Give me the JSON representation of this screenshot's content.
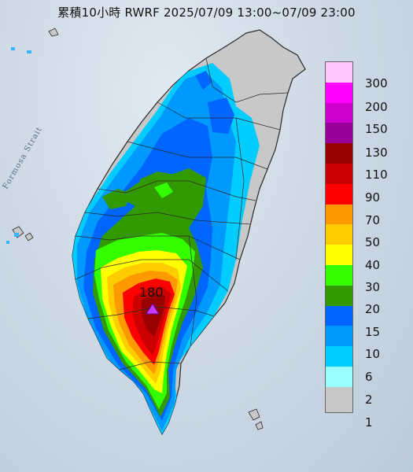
{
  "title": "累積10小時 RWRF 2025/07/09 13:00~07/09 23:00",
  "map_labels": {
    "strait": "Formosa Strait"
  },
  "max_marker": {
    "value": "180",
    "color": "#c43cff"
  },
  "legend": {
    "items": [
      {
        "label": "300",
        "color": "#fec8ff"
      },
      {
        "label": "200",
        "color": "#ff00ff"
      },
      {
        "label": "150",
        "color": "#cc00cc"
      },
      {
        "label": "130",
        "color": "#990099"
      },
      {
        "label": "110",
        "color": "#990000"
      },
      {
        "label": "90",
        "color": "#cc0000"
      },
      {
        "label": "70",
        "color": "#ff0000"
      },
      {
        "label": "50",
        "color": "#ff9900"
      },
      {
        "label": "40",
        "color": "#ffcc00"
      },
      {
        "label": "30",
        "color": "#ffff00"
      },
      {
        "label": "20",
        "color": "#33ff00"
      },
      {
        "label": "15",
        "color": "#339900"
      },
      {
        "label": "10",
        "color": "#0066ff"
      },
      {
        "label": "6",
        "color": "#0099ff"
      },
      {
        "label": "2",
        "color": "#00ccff"
      },
      {
        "label": "1",
        "color": "#99ffff"
      },
      {
        "label": "",
        "color": "#c8c8c8"
      }
    ]
  }
}
